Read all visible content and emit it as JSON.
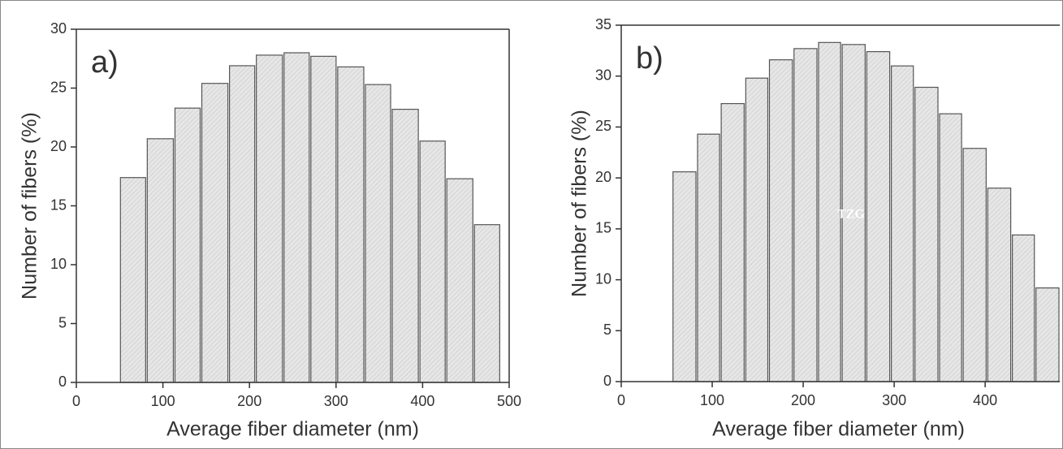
{
  "chart_data": [
    {
      "type": "histogram",
      "panel_label": "a)",
      "xlabel": "Average fiber diameter (nm)",
      "ylabel": "Number of fibers (%)",
      "bins": [
        50,
        81,
        113,
        144,
        176,
        207,
        239,
        270,
        301,
        333,
        364,
        396,
        427,
        459,
        490
      ],
      "values": [
        17.4,
        20.7,
        23.3,
        25.4,
        26.9,
        27.8,
        28.0,
        27.7,
        26.8,
        25.3,
        23.2,
        20.5,
        17.3,
        13.4
      ],
      "color": "#e4e4e4",
      "xlim": [
        0,
        500
      ],
      "xticks": [
        0,
        100,
        200,
        300,
        400,
        500
      ],
      "ylim": [
        0,
        30
      ],
      "yticks": [
        0,
        5,
        10,
        15,
        20,
        25,
        30
      ]
    },
    {
      "type": "histogram",
      "panel_label": "b)",
      "xlabel": "Average fiber diameter (nm)",
      "ylabel": "Number of fibers (%)",
      "annotation": "TZG",
      "bins": [
        56,
        83,
        109,
        136,
        162,
        189,
        216,
        242,
        269,
        296,
        322,
        349,
        375,
        402,
        429,
        455,
        482
      ],
      "values": [
        20.6,
        24.3,
        27.3,
        29.8,
        31.6,
        32.7,
        33.3,
        33.1,
        32.4,
        31.0,
        28.9,
        26.3,
        22.9,
        19.0,
        14.4,
        9.2
      ],
      "color": "#e4e4e4",
      "xlim": [
        0,
        482
      ],
      "xticks": [
        0,
        100,
        200,
        300,
        400
      ],
      "ylim": [
        0,
        35
      ],
      "yticks": [
        0,
        5,
        10,
        15,
        20,
        25,
        30,
        35
      ]
    }
  ]
}
